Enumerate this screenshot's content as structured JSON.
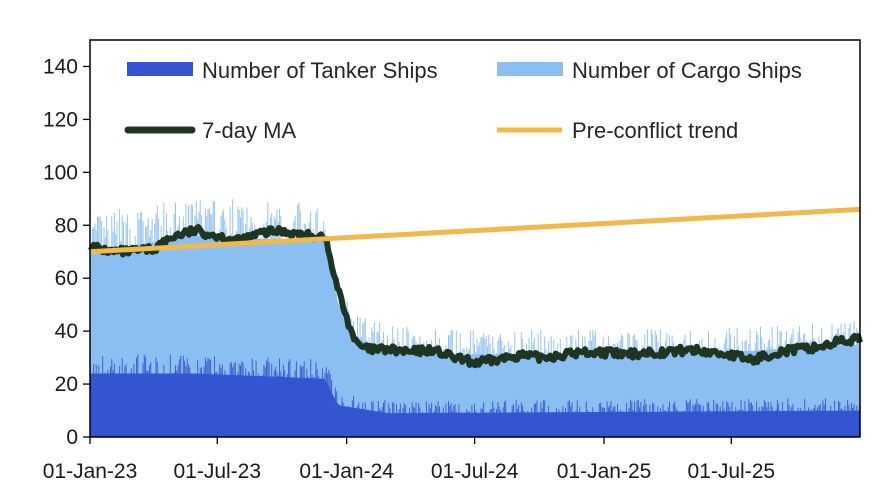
{
  "chart_data": {
    "type": "area",
    "title": "",
    "xlabel": "",
    "ylabel": "",
    "ylim": [
      0,
      150
    ],
    "y_ticks": [
      "0",
      "20",
      "40",
      "60",
      "80",
      "100",
      "120",
      "140"
    ],
    "x_ticks": [
      "01-Jan-23",
      "01-Jul-23",
      "01-Jan-24",
      "01-Jul-24",
      "01-Jan-25",
      "01-Jul-25"
    ],
    "x_range": [
      "2023-01-01",
      "2025-12-31"
    ],
    "legend": {
      "placement": "top",
      "items": [
        "Number of Tanker Ships",
        "Number of Cargo Ships",
        "7-day MA",
        "Pre-conflict trend"
      ]
    },
    "series": [
      {
        "name": "Number of Tanker Ships",
        "kind": "stacked-area",
        "color": "#3554d1",
        "points": [
          [
            "2023-01-01",
            24
          ],
          [
            "2023-06-01",
            24
          ],
          [
            "2023-12-01",
            22
          ],
          [
            "2023-12-20",
            12
          ],
          [
            "2024-03-01",
            9
          ],
          [
            "2025-12-31",
            10
          ]
        ]
      },
      {
        "name": "Number of Cargo Ships",
        "kind": "stacked-area",
        "color": "#8bbff2",
        "points": [
          [
            "2023-01-01",
            46
          ],
          [
            "2023-06-01",
            52
          ],
          [
            "2023-12-01",
            52
          ],
          [
            "2023-12-20",
            38
          ],
          [
            "2024-01-15",
            26
          ],
          [
            "2024-06-01",
            22
          ],
          [
            "2025-06-01",
            22
          ],
          [
            "2025-12-31",
            25
          ]
        ]
      },
      {
        "name": "7-day MA",
        "kind": "line",
        "color": "#1f3524",
        "points": [
          [
            "2023-01-01",
            72
          ],
          [
            "2023-02-01",
            70
          ],
          [
            "2023-03-01",
            70
          ],
          [
            "2023-04-01",
            71
          ],
          [
            "2023-05-01",
            76
          ],
          [
            "2023-06-01",
            78
          ],
          [
            "2023-07-01",
            76
          ],
          [
            "2023-08-01",
            74
          ],
          [
            "2023-09-01",
            77
          ],
          [
            "2023-10-01",
            78
          ],
          [
            "2023-11-01",
            76
          ],
          [
            "2023-12-01",
            76
          ],
          [
            "2023-12-15",
            60
          ],
          [
            "2024-01-01",
            45
          ],
          [
            "2024-01-15",
            35
          ],
          [
            "2024-02-01",
            33
          ],
          [
            "2024-03-01",
            33
          ],
          [
            "2024-04-01",
            32
          ],
          [
            "2024-05-01",
            33
          ],
          [
            "2024-06-01",
            30
          ],
          [
            "2024-07-01",
            28
          ],
          [
            "2024-08-01",
            29
          ],
          [
            "2024-09-01",
            31
          ],
          [
            "2024-10-01",
            30
          ],
          [
            "2024-11-01",
            31
          ],
          [
            "2024-12-01",
            32
          ],
          [
            "2025-01-01",
            32
          ],
          [
            "2025-02-01",
            31
          ],
          [
            "2025-03-01",
            32
          ],
          [
            "2025-04-01",
            32
          ],
          [
            "2025-05-01",
            33
          ],
          [
            "2025-06-01",
            32
          ],
          [
            "2025-07-01",
            31
          ],
          [
            "2025-08-01",
            29
          ],
          [
            "2025-09-01",
            32
          ],
          [
            "2025-10-01",
            33
          ],
          [
            "2025-11-01",
            34
          ],
          [
            "2025-12-01",
            36
          ],
          [
            "2025-12-31",
            37
          ]
        ]
      },
      {
        "name": "Pre-conflict trend",
        "kind": "line",
        "color": "#f0b94a",
        "points": [
          [
            "2023-01-01",
            70
          ],
          [
            "2025-12-31",
            86
          ]
        ]
      }
    ]
  }
}
